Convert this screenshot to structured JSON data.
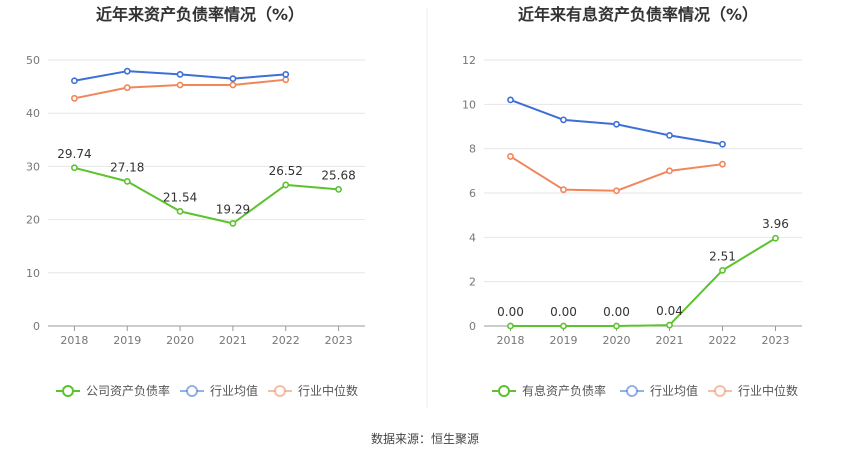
{
  "source": "数据来源：恒生聚源",
  "colors": {
    "company": "#5cc22e",
    "avg": "#3d6fd6",
    "median": "#f0865c",
    "grid": "#e6e6e6",
    "axis": "#999999"
  },
  "chart_data": [
    {
      "type": "line",
      "title": "近年来资产负债率情况（%）",
      "categories": [
        "2018",
        "2019",
        "2020",
        "2021",
        "2022",
        "2023"
      ],
      "ylim": [
        0,
        50
      ],
      "yticks": [
        "0",
        "10",
        "20",
        "30",
        "40",
        "50"
      ],
      "series": [
        {
          "name": "公司资产负债率",
          "values": [
            29.74,
            27.18,
            21.54,
            19.29,
            26.52,
            25.68
          ],
          "labels": [
            "29.74",
            "27.18",
            "21.54",
            "19.29",
            "26.52",
            "25.68"
          ]
        },
        {
          "name": "行业均值",
          "values": [
            46.1,
            47.9,
            47.3,
            46.5,
            47.3,
            null
          ]
        },
        {
          "name": "行业中位数",
          "values": [
            42.8,
            44.8,
            45.3,
            45.3,
            46.3,
            null
          ]
        }
      ]
    },
    {
      "type": "line",
      "title": "近年来有息资产负债率情况（%）",
      "categories": [
        "2018",
        "2019",
        "2020",
        "2021",
        "2022",
        "2023"
      ],
      "ylim": [
        0,
        12
      ],
      "yticks": [
        "0",
        "2",
        "4",
        "6",
        "8",
        "10",
        "12"
      ],
      "series": [
        {
          "name": "有息资产负债率",
          "values": [
            0.0,
            0.0,
            0.0,
            0.04,
            2.51,
            3.96
          ],
          "labels": [
            "0.00",
            "0.00",
            "0.00",
            "0.04",
            "2.51",
            "3.96"
          ]
        },
        {
          "name": "行业均值",
          "values": [
            10.2,
            9.3,
            9.1,
            8.6,
            8.2,
            null
          ]
        },
        {
          "name": "行业中位数",
          "values": [
            7.65,
            6.15,
            6.1,
            7.0,
            7.3,
            null
          ]
        }
      ]
    }
  ]
}
